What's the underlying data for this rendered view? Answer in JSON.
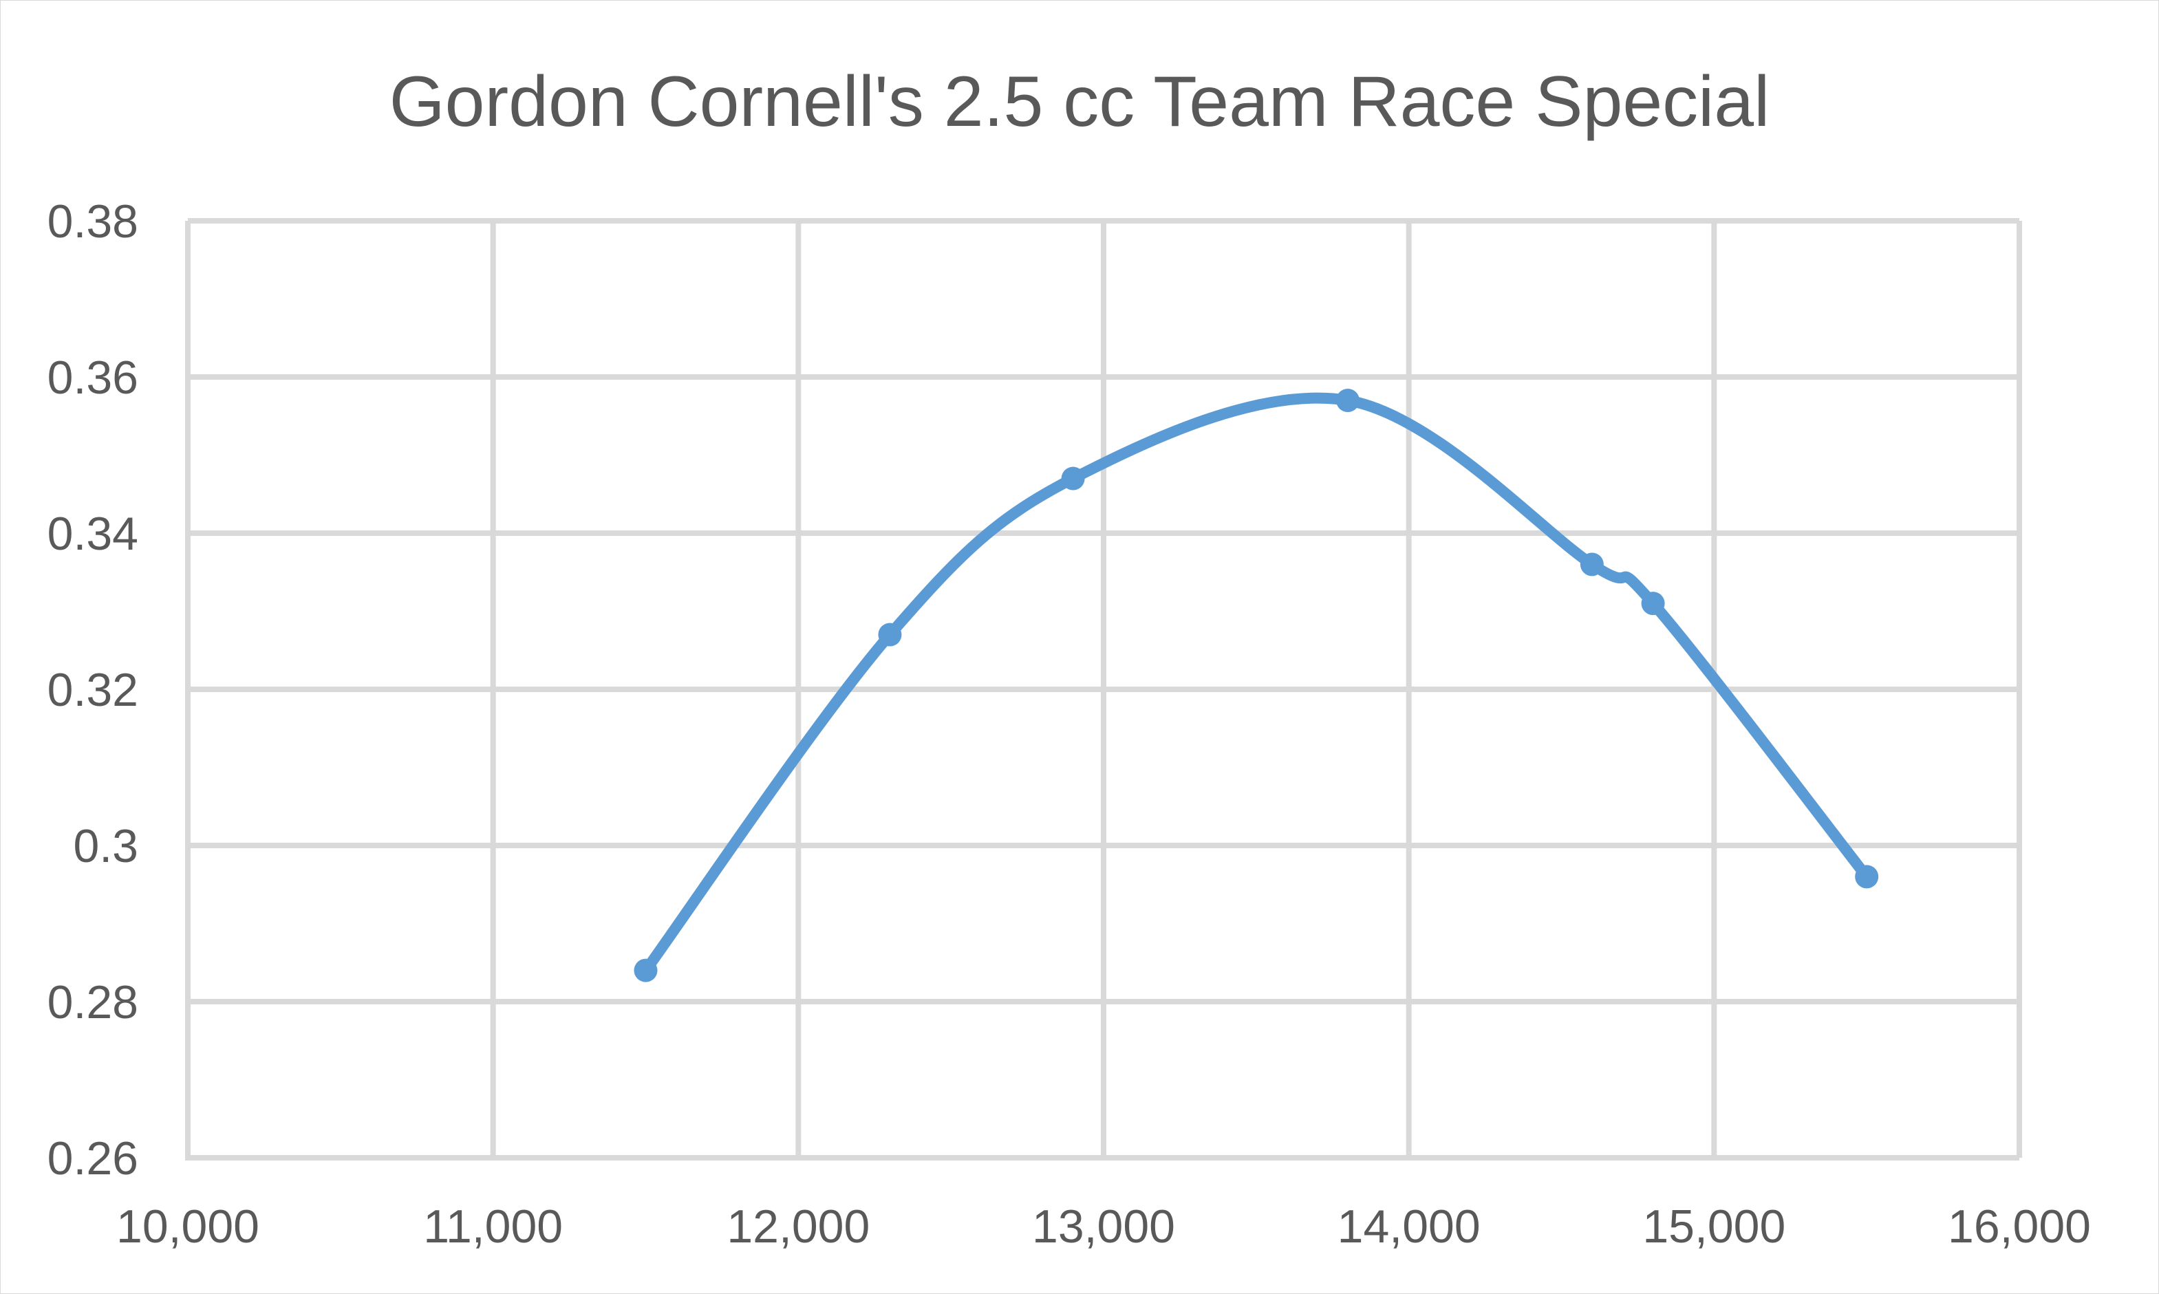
{
  "chart_data": {
    "type": "scatter",
    "title": "Gordon Cornell's 2.5 cc Team Race Special",
    "xlabel": "",
    "ylabel": "",
    "xlim": [
      10000,
      16000
    ],
    "ylim": [
      0.26,
      0.38
    ],
    "x_ticks": [
      "10,000",
      "11,000",
      "12,000",
      "13,000",
      "14,000",
      "15,000",
      "16,000"
    ],
    "y_ticks": [
      "0.26",
      "0.28",
      "0.3",
      "0.32",
      "0.34",
      "0.36",
      "0.38"
    ],
    "grid": true,
    "legend": "none",
    "smooth": true,
    "series_color": "#5b9bd5",
    "series": [
      {
        "points": [
          {
            "x": 11500,
            "y": 0.284
          },
          {
            "x": 12300,
            "y": 0.327
          },
          {
            "x": 12900,
            "y": 0.347
          },
          {
            "x": 13800,
            "y": 0.357
          },
          {
            "x": 14600,
            "y": 0.336
          },
          {
            "x": 14800,
            "y": 0.331
          },
          {
            "x": 15500,
            "y": 0.296
          }
        ]
      }
    ]
  }
}
